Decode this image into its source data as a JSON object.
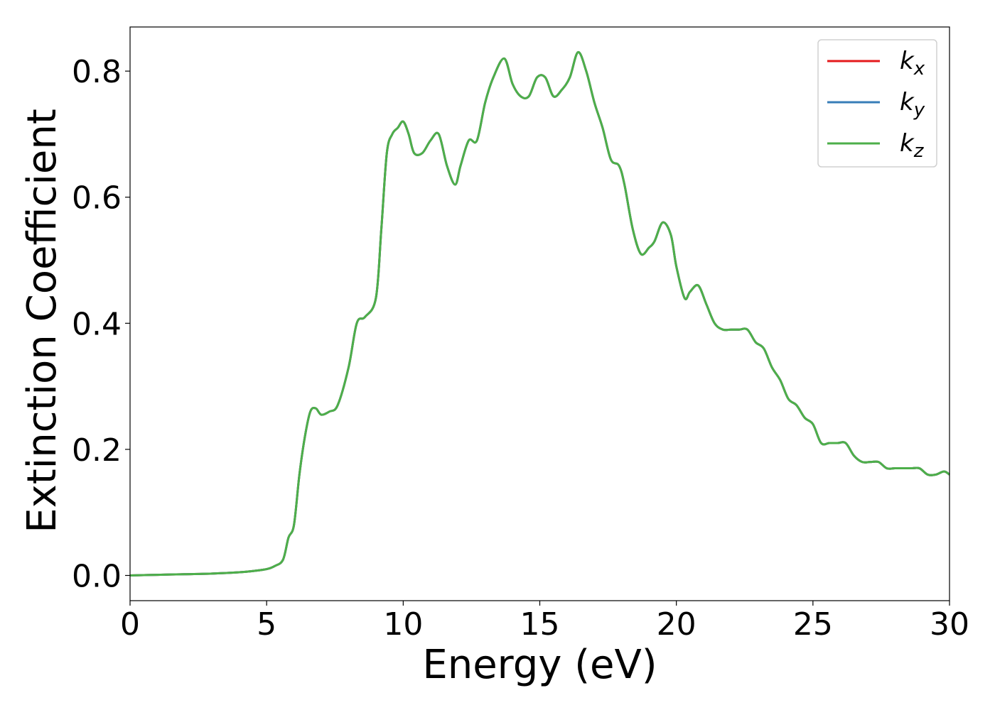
{
  "chart_data": {
    "type": "line",
    "title": "",
    "xlabel": "Energy (eV)",
    "ylabel": "Extinction Coefficient",
    "xlim": [
      0,
      30
    ],
    "ylim": [
      -0.04,
      0.87
    ],
    "xticks": [
      0,
      5,
      10,
      15,
      20,
      25,
      30
    ],
    "yticks": [
      0.0,
      0.2,
      0.4,
      0.6,
      0.8
    ],
    "xtick_labels": [
      "0",
      "5",
      "10",
      "15",
      "20",
      "25",
      "30"
    ],
    "ytick_labels": [
      "0.0",
      "0.2",
      "0.4",
      "0.6",
      "0.8"
    ],
    "grid": false,
    "legend_position": "top-right",
    "series": [
      {
        "name": "k_x",
        "label_base": "k",
        "label_sub": "x",
        "color": "#e41a1c",
        "x": [
          0,
          1,
          2,
          3,
          4,
          4.5,
          5,
          5.3,
          5.6,
          5.8,
          6.0,
          6.2,
          6.4,
          6.6,
          6.8,
          7.0,
          7.3,
          7.6,
          8.0,
          8.3,
          8.6,
          9.0,
          9.2,
          9.4,
          9.6,
          9.8,
          10.0,
          10.2,
          10.4,
          10.7,
          11.0,
          11.3,
          11.6,
          11.9,
          12.1,
          12.4,
          12.7,
          13.0,
          13.3,
          13.7,
          14.0,
          14.3,
          14.6,
          14.9,
          15.2,
          15.5,
          15.8,
          16.1,
          16.4,
          16.7,
          17.0,
          17.3,
          17.6,
          17.9,
          18.1,
          18.4,
          18.7,
          19.0,
          19.2,
          19.5,
          19.8,
          20.0,
          20.3,
          20.5,
          20.8,
          21.1,
          21.4,
          21.7,
          22.0,
          22.3,
          22.6,
          22.9,
          23.2,
          23.5,
          23.8,
          24.1,
          24.4,
          24.7,
          25.0,
          25.3,
          25.6,
          25.9,
          26.2,
          26.5,
          26.8,
          27.1,
          27.4,
          27.7,
          28.0,
          28.3,
          28.6,
          28.9,
          29.2,
          29.5,
          29.8,
          30.0
        ],
        "values": [
          0.0,
          0.001,
          0.002,
          0.003,
          0.005,
          0.007,
          0.01,
          0.015,
          0.025,
          0.06,
          0.08,
          0.16,
          0.22,
          0.26,
          0.265,
          0.255,
          0.26,
          0.27,
          0.33,
          0.4,
          0.41,
          0.44,
          0.55,
          0.67,
          0.7,
          0.71,
          0.72,
          0.7,
          0.67,
          0.67,
          0.69,
          0.7,
          0.65,
          0.62,
          0.65,
          0.69,
          0.69,
          0.75,
          0.79,
          0.82,
          0.78,
          0.76,
          0.76,
          0.79,
          0.79,
          0.76,
          0.77,
          0.79,
          0.83,
          0.8,
          0.75,
          0.71,
          0.66,
          0.65,
          0.62,
          0.55,
          0.51,
          0.52,
          0.53,
          0.56,
          0.54,
          0.49,
          0.44,
          0.45,
          0.46,
          0.43,
          0.4,
          0.39,
          0.39,
          0.39,
          0.39,
          0.37,
          0.36,
          0.33,
          0.31,
          0.28,
          0.27,
          0.25,
          0.24,
          0.21,
          0.21,
          0.21,
          0.21,
          0.19,
          0.18,
          0.18,
          0.18,
          0.17,
          0.17,
          0.17,
          0.17,
          0.17,
          0.16,
          0.16,
          0.165,
          0.16
        ]
      },
      {
        "name": "k_y",
        "label_base": "k",
        "label_sub": "y",
        "color": "#377eb8",
        "x": [
          0,
          1,
          2,
          3,
          4,
          4.5,
          5,
          5.3,
          5.6,
          5.8,
          6.0,
          6.2,
          6.4,
          6.6,
          6.8,
          7.0,
          7.3,
          7.6,
          8.0,
          8.3,
          8.6,
          9.0,
          9.2,
          9.4,
          9.6,
          9.8,
          10.0,
          10.2,
          10.4,
          10.7,
          11.0,
          11.3,
          11.6,
          11.9,
          12.1,
          12.4,
          12.7,
          13.0,
          13.3,
          13.7,
          14.0,
          14.3,
          14.6,
          14.9,
          15.2,
          15.5,
          15.8,
          16.1,
          16.4,
          16.7,
          17.0,
          17.3,
          17.6,
          17.9,
          18.1,
          18.4,
          18.7,
          19.0,
          19.2,
          19.5,
          19.8,
          20.0,
          20.3,
          20.5,
          20.8,
          21.1,
          21.4,
          21.7,
          22.0,
          22.3,
          22.6,
          22.9,
          23.2,
          23.5,
          23.8,
          24.1,
          24.4,
          24.7,
          25.0,
          25.3,
          25.6,
          25.9,
          26.2,
          26.5,
          26.8,
          27.1,
          27.4,
          27.7,
          28.0,
          28.3,
          28.6,
          28.9,
          29.2,
          29.5,
          29.8,
          30.0
        ],
        "values": [
          0.0,
          0.001,
          0.002,
          0.003,
          0.005,
          0.007,
          0.01,
          0.015,
          0.025,
          0.06,
          0.08,
          0.16,
          0.22,
          0.26,
          0.265,
          0.255,
          0.26,
          0.27,
          0.33,
          0.4,
          0.41,
          0.44,
          0.55,
          0.67,
          0.7,
          0.71,
          0.72,
          0.7,
          0.67,
          0.67,
          0.69,
          0.7,
          0.65,
          0.62,
          0.65,
          0.69,
          0.69,
          0.75,
          0.79,
          0.82,
          0.78,
          0.76,
          0.76,
          0.79,
          0.79,
          0.76,
          0.77,
          0.79,
          0.83,
          0.8,
          0.75,
          0.71,
          0.66,
          0.65,
          0.62,
          0.55,
          0.51,
          0.52,
          0.53,
          0.56,
          0.54,
          0.49,
          0.44,
          0.45,
          0.46,
          0.43,
          0.4,
          0.39,
          0.39,
          0.39,
          0.39,
          0.37,
          0.36,
          0.33,
          0.31,
          0.28,
          0.27,
          0.25,
          0.24,
          0.21,
          0.21,
          0.21,
          0.21,
          0.19,
          0.18,
          0.18,
          0.18,
          0.17,
          0.17,
          0.17,
          0.17,
          0.17,
          0.16,
          0.16,
          0.165,
          0.16
        ]
      },
      {
        "name": "k_z",
        "label_base": "k",
        "label_sub": "z",
        "color": "#4daf4a",
        "x": [
          0,
          1,
          2,
          3,
          4,
          4.5,
          5,
          5.3,
          5.6,
          5.8,
          6.0,
          6.2,
          6.4,
          6.6,
          6.8,
          7.0,
          7.3,
          7.6,
          8.0,
          8.3,
          8.6,
          9.0,
          9.2,
          9.4,
          9.6,
          9.8,
          10.0,
          10.2,
          10.4,
          10.7,
          11.0,
          11.3,
          11.6,
          11.9,
          12.1,
          12.4,
          12.7,
          13.0,
          13.3,
          13.7,
          14.0,
          14.3,
          14.6,
          14.9,
          15.2,
          15.5,
          15.8,
          16.1,
          16.4,
          16.7,
          17.0,
          17.3,
          17.6,
          17.9,
          18.1,
          18.4,
          18.7,
          19.0,
          19.2,
          19.5,
          19.8,
          20.0,
          20.3,
          20.5,
          20.8,
          21.1,
          21.4,
          21.7,
          22.0,
          22.3,
          22.6,
          22.9,
          23.2,
          23.5,
          23.8,
          24.1,
          24.4,
          24.7,
          25.0,
          25.3,
          25.6,
          25.9,
          26.2,
          26.5,
          26.8,
          27.1,
          27.4,
          27.7,
          28.0,
          28.3,
          28.6,
          28.9,
          29.2,
          29.5,
          29.8,
          30.0
        ],
        "values": [
          0.0,
          0.001,
          0.002,
          0.003,
          0.005,
          0.007,
          0.01,
          0.015,
          0.025,
          0.06,
          0.08,
          0.16,
          0.22,
          0.26,
          0.265,
          0.255,
          0.26,
          0.27,
          0.33,
          0.4,
          0.41,
          0.44,
          0.55,
          0.67,
          0.7,
          0.71,
          0.72,
          0.7,
          0.67,
          0.67,
          0.69,
          0.7,
          0.65,
          0.62,
          0.65,
          0.69,
          0.69,
          0.75,
          0.79,
          0.82,
          0.78,
          0.76,
          0.76,
          0.79,
          0.79,
          0.76,
          0.77,
          0.79,
          0.83,
          0.8,
          0.75,
          0.71,
          0.66,
          0.65,
          0.62,
          0.55,
          0.51,
          0.52,
          0.53,
          0.56,
          0.54,
          0.49,
          0.44,
          0.45,
          0.46,
          0.43,
          0.4,
          0.39,
          0.39,
          0.39,
          0.39,
          0.37,
          0.36,
          0.33,
          0.31,
          0.28,
          0.27,
          0.25,
          0.24,
          0.21,
          0.21,
          0.21,
          0.21,
          0.19,
          0.18,
          0.18,
          0.18,
          0.17,
          0.17,
          0.17,
          0.17,
          0.17,
          0.16,
          0.16,
          0.165,
          0.16
        ]
      }
    ]
  }
}
